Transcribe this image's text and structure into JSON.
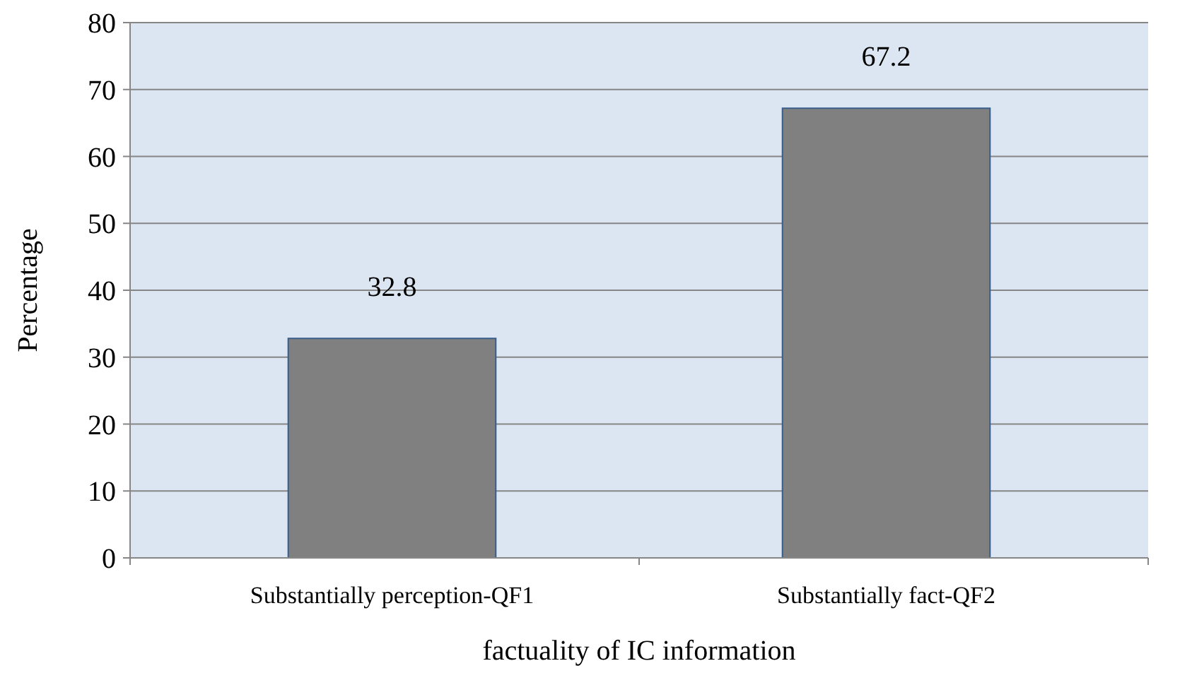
{
  "chart_data": {
    "type": "bar",
    "xlabel": "factuality of IC information",
    "ylabel": "Percentage",
    "categories": [
      "Substantially perception-QF1",
      "Substantially fact-QF2"
    ],
    "values": [
      32.8,
      67.2
    ],
    "color": "#808080",
    "ylim": [
      0,
      80
    ],
    "yticks": [
      0,
      10,
      20,
      30,
      40,
      50,
      60,
      70,
      80
    ],
    "grid": "y",
    "data_labels": true
  }
}
